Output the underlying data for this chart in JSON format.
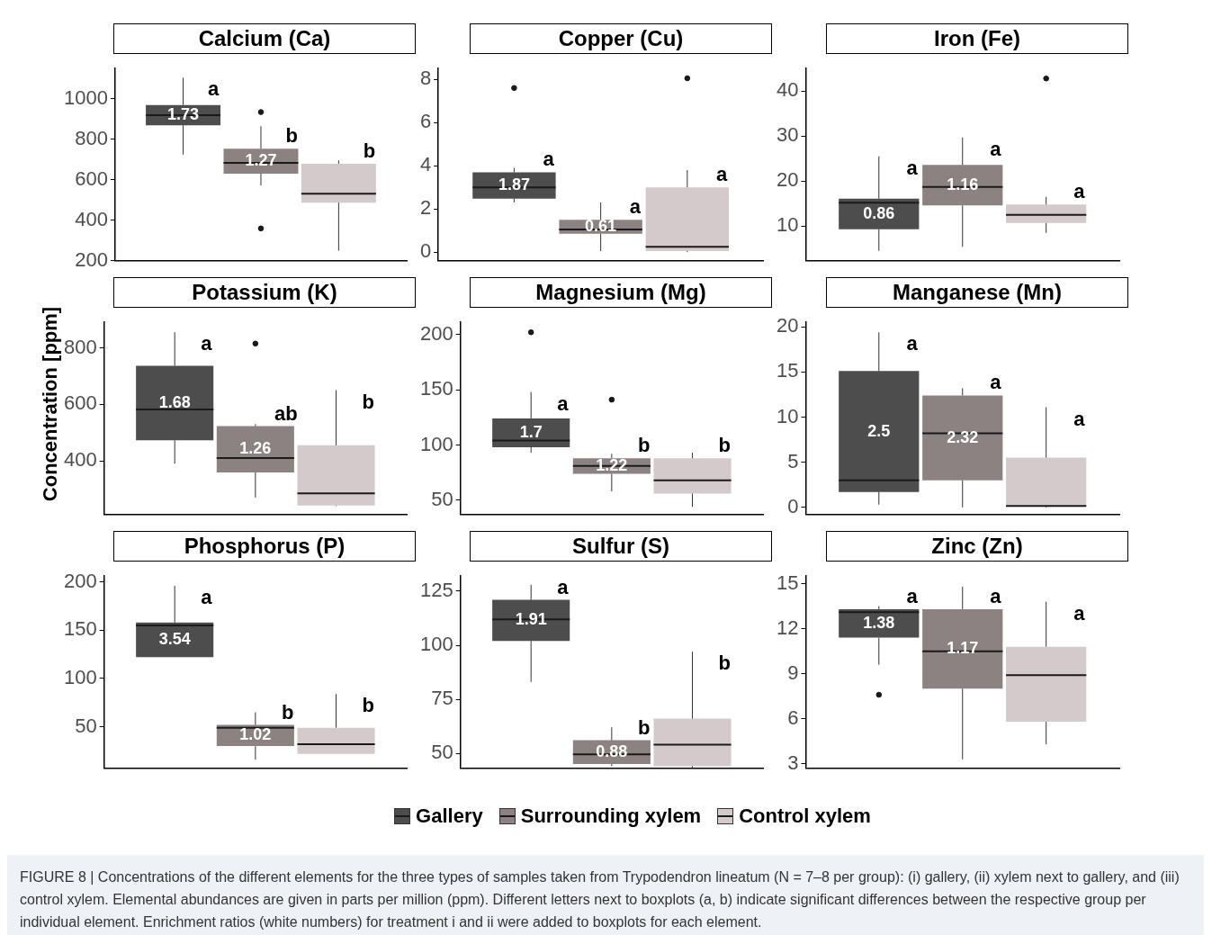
{
  "chart_data": [
    {
      "type": "box",
      "title": "Calcium (Ca)",
      "categories": [
        null
      ],
      "ylim": [
        200,
        1150
      ],
      "yticks": [
        200,
        400,
        600,
        800,
        1000
      ],
      "tick_labels": "y",
      "legend": "bottom",
      "series": [
        {
          "name": "Gallery",
          "color": "#4d4d4d",
          "boxes": [
            {
              "low": 725,
              "q1": 870,
              "median": 920,
              "q3": 970,
              "high": 1105
            }
          ],
          "value_labels": [
            "1.73"
          ]
        },
        {
          "name": "Surrounding xylem",
          "color": "#8c8282",
          "boxes": [
            {
              "low": 573,
              "q1": 631,
              "median": 684,
              "q3": 754,
              "high": 865,
              "outliers": [
                935,
                360
              ]
            }
          ],
          "value_labels": [
            "1.27"
          ]
        },
        {
          "name": "Control xylem",
          "color": "#d4c9cb",
          "boxes": [
            {
              "low": 250,
              "q1": 487,
              "median": 532,
              "q3": 680,
              "high": 696
            }
          ]
        }
      ],
      "annotations": [
        "a",
        "b",
        "b"
      ]
    },
    {
      "type": "box",
      "title": "Copper (Cu)",
      "categories": [
        null
      ],
      "ylim": [
        -0.4,
        8.5
      ],
      "yticks": [
        0,
        2,
        4,
        6,
        8
      ],
      "tick_labels": "y",
      "series": [
        {
          "color": "#4d4d4d",
          "boxes": [
            {
              "low": 2.3,
              "q1": 2.48,
              "median": 3.0,
              "q3": 3.7,
              "high": 3.9,
              "outliers": [
                7.6
              ]
            }
          ],
          "value_labels": [
            "1.87"
          ]
        },
        {
          "color": "#8c8282",
          "boxes": [
            {
              "low": 0.05,
              "q1": 0.85,
              "median": 1.05,
              "q3": 1.5,
              "high": 2.3
            }
          ],
          "value_labels": [
            "0.61"
          ]
        },
        {
          "color": "#d4c9cb",
          "boxes": [
            {
              "low": 0.0,
              "q1": 0.05,
              "median": 0.25,
              "q3": 3.0,
              "high": 3.8,
              "outliers": [
                8.05
              ]
            }
          ]
        }
      ],
      "annotations": [
        "a",
        "a",
        "a"
      ]
    },
    {
      "type": "box",
      "title": "Iron (Fe)",
      "categories": [
        null
      ],
      "ylim": [
        2.3,
        45
      ],
      "yticks": [
        10,
        20,
        30,
        40
      ],
      "tick_labels": "y",
      "series": [
        {
          "color": "#4d4d4d",
          "boxes": [
            {
              "low": 4.5,
              "q1": 9.3,
              "median": 15.2,
              "q3": 16.1,
              "high": 25.5
            }
          ],
          "value_labels": [
            "0.86"
          ]
        },
        {
          "color": "#8c8282",
          "boxes": [
            {
              "low": 5.4,
              "q1": 14.6,
              "median": 18.7,
              "q3": 23.6,
              "high": 29.7
            }
          ],
          "value_labels": [
            "1.16"
          ]
        },
        {
          "color": "#d4c9cb",
          "boxes": [
            {
              "low": 8.5,
              "q1": 10.7,
              "median": 12.5,
              "q3": 14.8,
              "high": 16.5,
              "outliers": [
                42.8
              ]
            }
          ]
        }
      ],
      "annotations": [
        "a",
        "a",
        "a"
      ]
    },
    {
      "type": "box",
      "title": "Potassium (K)",
      "ylabel": "Concentration [ppm]",
      "categories": [
        null
      ],
      "ylim": [
        210,
        890
      ],
      "yticks": [
        400,
        600,
        800
      ],
      "tick_labels": "y",
      "series": [
        {
          "color": "#4d4d4d",
          "boxes": [
            {
              "low": 390,
              "q1": 473,
              "median": 582,
              "q3": 736,
              "high": 855
            }
          ],
          "value_labels": [
            "1.68"
          ]
        },
        {
          "color": "#8c8282",
          "boxes": [
            {
              "low": 270,
              "q1": 359,
              "median": 410,
              "q3": 523,
              "high": 530,
              "outliers": [
                815
              ]
            }
          ],
          "value_labels": [
            "1.26"
          ]
        },
        {
          "color": "#d4c9cb",
          "boxes": [
            {
              "low": 240,
              "q1": 242,
              "median": 285,
              "q3": 455,
              "high": 650
            }
          ]
        }
      ],
      "annotations": [
        "a",
        "ab",
        "b"
      ]
    },
    {
      "type": "box",
      "title": "Magnesium (Mg)",
      "categories": [
        null
      ],
      "ylim": [
        37,
        211
      ],
      "yticks": [
        50,
        100,
        150,
        200
      ],
      "tick_labels": "y",
      "series": [
        {
          "color": "#4d4d4d",
          "boxes": [
            {
              "low": 93,
              "q1": 98,
              "median": 104,
              "q3": 124,
              "high": 148,
              "outliers": [
                202
              ]
            }
          ],
          "value_labels": [
            "1.7"
          ]
        },
        {
          "color": "#8c8282",
          "boxes": [
            {
              "low": 58,
              "q1": 74,
              "median": 81,
              "q3": 88,
              "high": 92,
              "outliers": [
                141
              ]
            }
          ],
          "value_labels": [
            "1.22"
          ]
        },
        {
          "color": "#d4c9cb",
          "boxes": [
            {
              "low": 44,
              "q1": 56,
              "median": 68,
              "q3": 88,
              "high": 93
            }
          ]
        }
      ],
      "annotations": [
        "a",
        "b",
        "b"
      ]
    },
    {
      "type": "box",
      "title": "Manganese (Mn)",
      "categories": [
        null
      ],
      "ylim": [
        -0.8,
        20.5
      ],
      "yticks": [
        0,
        5,
        10,
        15,
        20
      ],
      "tick_labels": "y",
      "series": [
        {
          "color": "#4d4d4d",
          "boxes": [
            {
              "low": 0.3,
              "q1": 1.7,
              "median": 3.0,
              "q3": 15.1,
              "high": 19.4
            }
          ],
          "value_labels": [
            "2.5"
          ]
        },
        {
          "color": "#8c8282",
          "boxes": [
            {
              "low": 0.0,
              "q1": 3.0,
              "median": 8.2,
              "q3": 12.4,
              "high": 13.2
            }
          ],
          "value_labels": [
            "2.32"
          ]
        },
        {
          "color": "#d4c9cb",
          "boxes": [
            {
              "low": 0.0,
              "q1": 0.1,
              "median": 0.15,
              "q3": 5.5,
              "high": 11.1
            }
          ]
        }
      ],
      "annotations": [
        "a",
        "a",
        "a"
      ]
    },
    {
      "type": "box",
      "title": "Phosphorus (P)",
      "categories": [
        null
      ],
      "ylim": [
        7,
        206
      ],
      "yticks": [
        50,
        100,
        150,
        200
      ],
      "tick_labels": "y",
      "series": [
        {
          "color": "#4d4d4d",
          "boxes": [
            {
              "low": 122,
              "q1": 122,
              "median": 155,
              "q3": 158,
              "high": 196
            }
          ],
          "value_labels": [
            "3.54"
          ]
        },
        {
          "color": "#8c8282",
          "boxes": [
            {
              "low": 16,
              "q1": 30,
              "median": 49,
              "q3": 52,
              "high": 65
            }
          ],
          "value_labels": [
            "1.02"
          ]
        },
        {
          "color": "#d4c9cb",
          "boxes": [
            {
              "low": 22,
              "q1": 22,
              "median": 32,
              "q3": 49,
              "high": 84
            }
          ]
        }
      ],
      "annotations": [
        "a",
        "b",
        "b"
      ]
    },
    {
      "type": "box",
      "title": "Sulfur (S)",
      "categories": [
        null
      ],
      "ylim": [
        43,
        132
      ],
      "yticks": [
        50,
        75,
        100,
        125
      ],
      "tick_labels": "y",
      "series": [
        {
          "color": "#4d4d4d",
          "boxes": [
            {
              "low": 83,
              "q1": 102,
              "median": 112,
              "q3": 121,
              "high": 128
            }
          ],
          "value_labels": [
            "1.91"
          ]
        },
        {
          "color": "#8c8282",
          "boxes": [
            {
              "low": 44,
              "q1": 45,
              "median": 49.5,
              "q3": 56,
              "high": 62
            }
          ],
          "value_labels": [
            "0.88"
          ]
        },
        {
          "color": "#d4c9cb",
          "boxes": [
            {
              "low": 43,
              "q1": 44,
              "median": 54,
              "q3": 66,
              "high": 97
            }
          ]
        }
      ],
      "annotations": [
        "a",
        "b",
        "b"
      ]
    },
    {
      "type": "box",
      "title": "Zinc (Zn)",
      "categories": [
        null
      ],
      "ylim": [
        2.7,
        15.5
      ],
      "yticks": [
        3,
        6,
        9,
        12,
        15
      ],
      "tick_labels": "y",
      "series": [
        {
          "color": "#4d4d4d",
          "boxes": [
            {
              "low": 9.6,
              "q1": 11.4,
              "median": 13.1,
              "q3": 13.3,
              "high": 13.5,
              "outliers": [
                7.6
              ]
            }
          ],
          "value_labels": [
            "1.38"
          ]
        },
        {
          "color": "#8c8282",
          "boxes": [
            {
              "low": 3.3,
              "q1": 8.0,
              "median": 10.5,
              "q3": 13.3,
              "high": 14.8
            }
          ],
          "value_labels": [
            "1.17"
          ]
        },
        {
          "color": "#d4c9cb",
          "boxes": [
            {
              "low": 4.3,
              "q1": 5.8,
              "median": 8.9,
              "q3": 10.8,
              "high": 13.8
            }
          ]
        }
      ],
      "annotations": [
        "a",
        "a",
        "a",
        "FIGURE 8 | Concentrations of the different elements for the three types of samples taken from Trypodendron lineatum (N = 7–8 per group): (i) gallery, (ii) xylem next to gallery, and (iii) control xylem. Elemental abundances are given in parts per million (ppm). Different letters next to boxplots (a, b) indicate significant differences between the respective group per individual element. Enrichment ratios (white numbers) for treatment i and ii were added to boxplots for each element."
      ]
    }
  ]
}
